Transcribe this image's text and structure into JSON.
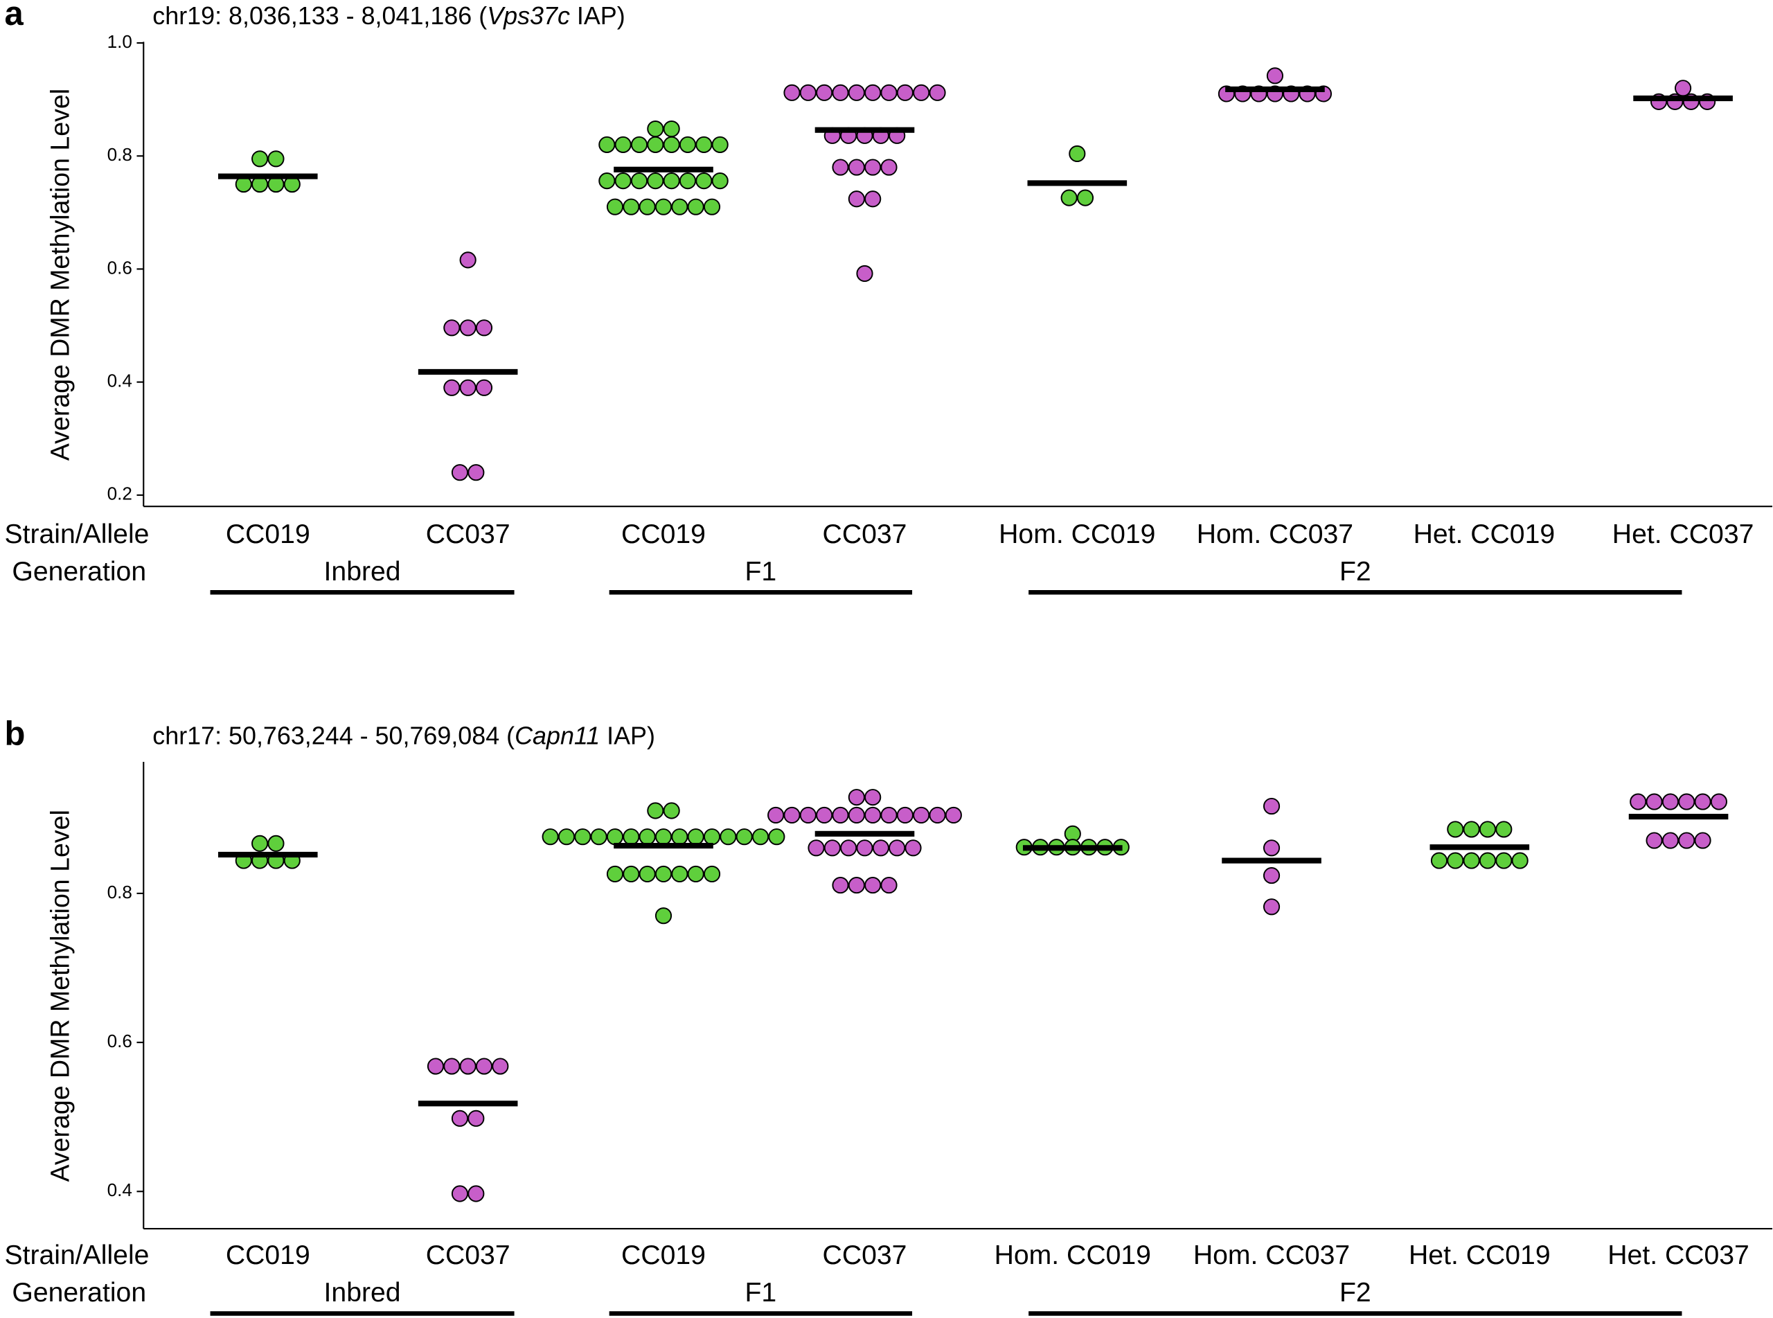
{
  "chart_data": [
    {
      "type": "dot",
      "panel_label": "a",
      "title": [
        "chr19: 8,036,133 - 8,041,186 (",
        "Vps37c",
        " IAP)"
      ],
      "y_label": "Average DMR Methylation Level",
      "row_labels": [
        "Strain/Allele",
        "Generation"
      ],
      "ylim": [
        0.18,
        1.0
      ],
      "yticks": [
        0.2,
        0.4,
        0.6,
        0.8,
        {
          "value": 1,
          "label": "1.0"
        }
      ],
      "groups": [
        {
          "name": "Inbred",
          "categories": [
            {
              "name": "CC019",
              "color": "#5fcf3c",
              "values": [
                0.795,
                0.795,
                0.75,
                0.75,
                0.75,
                0.75
              ],
              "mean": 0.764
            },
            {
              "name": "CC037",
              "color": "#c75ec9",
              "values": [
                0.616,
                0.496,
                0.496,
                0.496,
                0.39,
                0.39,
                0.39,
                0.24,
                0.24
              ],
              "mean": 0.418
            }
          ]
        },
        {
          "name": "F1",
          "categories": [
            {
              "name": "CC019",
              "color": "#5fcf3c",
              "values": [
                0.848,
                0.848,
                0.82,
                0.82,
                0.82,
                0.82,
                0.82,
                0.82,
                0.82,
                0.82,
                0.756,
                0.756,
                0.756,
                0.756,
                0.756,
                0.756,
                0.756,
                0.756,
                0.71,
                0.71,
                0.71,
                0.71,
                0.71,
                0.71,
                0.71
              ],
              "mean": 0.776
            },
            {
              "name": "CC037",
              "color": "#c75ec9",
              "values": [
                0.912,
                0.912,
                0.912,
                0.912,
                0.912,
                0.912,
                0.912,
                0.912,
                0.912,
                0.912,
                0.836,
                0.836,
                0.836,
                0.836,
                0.836,
                0.78,
                0.78,
                0.78,
                0.78,
                0.724,
                0.724,
                0.592
              ],
              "mean": 0.846
            }
          ]
        },
        {
          "name": "F2",
          "categories": [
            {
              "name": "Hom. CC019",
              "color": "#5fcf3c",
              "values": [
                0.804,
                0.726,
                0.726
              ],
              "mean": 0.752
            },
            {
              "name": "Hom. CC037",
              "color": "#c75ec9",
              "values": [
                0.942,
                0.91,
                0.91,
                0.91,
                0.91,
                0.91,
                0.91,
                0.91
              ],
              "mean": 0.918
            },
            {
              "name": "Het. CC019",
              "color": "#5fcf3c",
              "values": [],
              "mean": null
            },
            {
              "name": "Het. CC037",
              "color": "#c75ec9",
              "values": [
                0.92,
                0.896,
                0.896,
                0.896,
                0.896
              ],
              "mean": 0.902
            }
          ]
        }
      ]
    },
    {
      "type": "dot",
      "panel_label": "b",
      "title": [
        "chr17: 50,763,244 - 50,769,084 (",
        "Capn11",
        " IAP)"
      ],
      "y_label": "Average DMR Methylation Level",
      "row_labels": [
        "Strain/Allele",
        "Generation"
      ],
      "ylim": [
        0.35,
        0.975
      ],
      "yticks": [
        0.4,
        0.6,
        0.8
      ],
      "groups": [
        {
          "name": "Inbred",
          "categories": [
            {
              "name": "CC019",
              "color": "#5fcf3c",
              "values": [
                0.867,
                0.867,
                0.844,
                0.844,
                0.844,
                0.844
              ],
              "mean": 0.852
            },
            {
              "name": "CC037",
              "color": "#c75ec9",
              "values": [
                0.568,
                0.568,
                0.568,
                0.568,
                0.568,
                0.498,
                0.498,
                0.397,
                0.397
              ],
              "mean": 0.518
            }
          ]
        },
        {
          "name": "F1",
          "categories": [
            {
              "name": "CC019",
              "color": "#5fcf3c",
              "values": [
                0.911,
                0.911,
                0.876,
                0.876,
                0.876,
                0.876,
                0.876,
                0.876,
                0.876,
                0.876,
                0.876,
                0.876,
                0.876,
                0.876,
                0.876,
                0.876,
                0.876,
                0.826,
                0.826,
                0.826,
                0.826,
                0.826,
                0.826,
                0.826,
                0.77
              ],
              "mean": 0.864
            },
            {
              "name": "CC037",
              "color": "#c75ec9",
              "values": [
                0.929,
                0.929,
                0.905,
                0.905,
                0.905,
                0.905,
                0.905,
                0.905,
                0.905,
                0.905,
                0.905,
                0.905,
                0.905,
                0.905,
                0.861,
                0.861,
                0.861,
                0.861,
                0.861,
                0.861,
                0.861,
                0.811,
                0.811,
                0.811,
                0.811
              ],
              "mean": 0.88
            }
          ]
        },
        {
          "name": "F2",
          "categories": [
            {
              "name": "Hom. CC019",
              "color": "#5fcf3c",
              "values": [
                0.88,
                0.862,
                0.862,
                0.862,
                0.862,
                0.862,
                0.862,
                0.862
              ],
              "mean": 0.861
            },
            {
              "name": "Hom. CC037",
              "color": "#c75ec9",
              "values": [
                0.917,
                0.861,
                0.824,
                0.782
              ],
              "mean": 0.844
            },
            {
              "name": "Het. CC019",
              "color": "#5fcf3c",
              "values": [
                0.886,
                0.886,
                0.886,
                0.886,
                0.844,
                0.844,
                0.844,
                0.844,
                0.844,
                0.844
              ],
              "mean": 0.862
            },
            {
              "name": "Het. CC037",
              "color": "#c75ec9",
              "values": [
                0.923,
                0.923,
                0.923,
                0.923,
                0.923,
                0.923,
                0.871,
                0.871,
                0.871,
                0.871
              ],
              "mean": 0.903
            }
          ]
        }
      ]
    }
  ]
}
